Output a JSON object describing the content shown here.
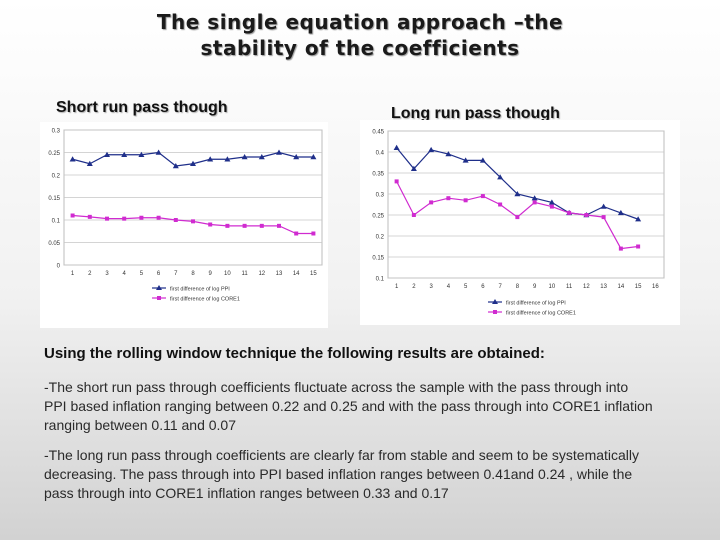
{
  "slide": {
    "title_line1": "The single equation approach –the",
    "title_line2": "stability of the coefficients",
    "subheading": "Using the rolling window  technique the following results are obtained:",
    "paragraph1": "-The short run pass through coefficients fluctuate across the sample with the pass through into PPI based inflation ranging between 0.22 and 0.25 and with the pass through into CORE1 inflation ranging between 0.11 and 0.07",
    "paragraph2": "-The long run pass through coefficients are clearly far from stable and seem to be systematically decreasing. The pass through into PPI based inflation ranges between 0.41and 0.24 , while the pass through into CORE1 inflation ranges between 0.33 and 0.17"
  },
  "chart_data": [
    {
      "type": "line",
      "title": "Short run pass though",
      "categories": [
        "1",
        "2",
        "3",
        "4",
        "5",
        "6",
        "7",
        "8",
        "9",
        "10",
        "11",
        "12",
        "13",
        "14",
        "15"
      ],
      "ylim": [
        0,
        0.3
      ],
      "yticks": [
        0,
        0.05,
        0.1,
        0.15,
        0.2,
        0.25,
        0.3
      ],
      "ytick_labels": [
        "0",
        "0.05",
        "0.1",
        "0.15",
        "0.2",
        "0.25",
        "0.3"
      ],
      "grid": true,
      "legend_position": "bottom",
      "series": [
        {
          "name": "first difference of log PPI",
          "color": "#1f2f8a",
          "marker": "triangle",
          "values": [
            0.235,
            0.225,
            0.245,
            0.245,
            0.245,
            0.25,
            0.22,
            0.225,
            0.235,
            0.235,
            0.24,
            0.24,
            0.25,
            0.24,
            0.24
          ]
        },
        {
          "name": "first difference of log CORE1",
          "color": "#d02bd0",
          "marker": "square",
          "values": [
            0.11,
            0.107,
            0.103,
            0.103,
            0.105,
            0.105,
            0.1,
            0.097,
            0.09,
            0.087,
            0.087,
            0.087,
            0.087,
            0.07,
            0.07
          ]
        }
      ]
    },
    {
      "type": "line",
      "title": "Long run pass though",
      "categories": [
        "1",
        "2",
        "3",
        "4",
        "5",
        "6",
        "7",
        "8",
        "9",
        "10",
        "11",
        "12",
        "13",
        "14",
        "15",
        "16"
      ],
      "ylim": [
        0.1,
        0.45
      ],
      "yticks": [
        0.1,
        0.15,
        0.2,
        0.25,
        0.3,
        0.35,
        0.4,
        0.45
      ],
      "ytick_labels": [
        "0.1",
        "0.15",
        "0.2",
        "0.25",
        "0.3",
        "0.35",
        "0.4",
        "0.45"
      ],
      "grid": true,
      "legend_position": "bottom",
      "series": [
        {
          "name": "first difference of log PPI",
          "color": "#1f2f8a",
          "marker": "triangle",
          "values": [
            0.41,
            0.36,
            0.405,
            0.395,
            0.38,
            0.38,
            0.34,
            0.3,
            0.29,
            0.28,
            0.255,
            0.25,
            0.27,
            0.255,
            0.24,
            null
          ]
        },
        {
          "name": "first difference of log CORE1",
          "color": "#d02bd0",
          "marker": "square",
          "values": [
            0.33,
            0.25,
            0.28,
            0.29,
            0.285,
            0.295,
            0.275,
            0.245,
            0.28,
            0.27,
            0.255,
            0.25,
            0.245,
            0.17,
            0.175,
            null
          ]
        }
      ]
    }
  ]
}
